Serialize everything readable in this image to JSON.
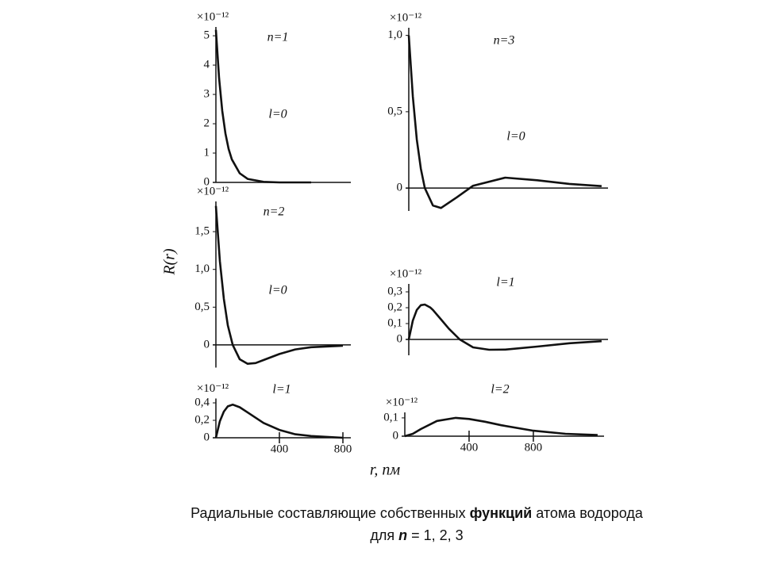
{
  "y_label": "R(r)",
  "x_label": "r, пм",
  "caption": {
    "line1": [
      "Радиальные составляющие собственных ",
      "функций",
      " атома водорода"
    ],
    "line2": [
      "для ",
      "n",
      " = 1, 2, 3"
    ]
  },
  "chart_data": [
    {
      "type": "line",
      "multiplier": "×10⁻¹²",
      "annotations": [
        "n=1",
        "l=0"
      ],
      "color": "#111",
      "x": [
        0,
        20,
        40,
        60,
        80,
        100,
        150,
        200,
        300,
        400,
        600
      ],
      "values": [
        5.2,
        3.56,
        2.44,
        1.67,
        1.14,
        0.79,
        0.31,
        0.12,
        0.02,
        0,
        0
      ],
      "xlim": [
        0,
        850
      ],
      "ylim": [
        0,
        5.3
      ],
      "yticks": [
        0,
        1,
        2,
        3,
        4,
        5
      ]
    },
    {
      "type": "line",
      "multiplier": "×10⁻¹²",
      "annotations": [
        "n=3",
        "l=0"
      ],
      "color": "#111",
      "x": [
        0,
        25,
        50,
        75,
        100,
        150,
        200,
        300,
        400,
        600,
        800,
        1000,
        1200
      ],
      "values": [
        1.0,
        0.6,
        0.318,
        0.127,
        0.0,
        -0.114,
        -0.131,
        -0.06,
        0.015,
        0.068,
        0.051,
        0.027,
        0.0125
      ],
      "xlim": [
        0,
        1240
      ],
      "ylim": [
        -0.15,
        1.05
      ],
      "yticks": [
        0,
        {
          "value": 0.5,
          "label": "0,5"
        },
        {
          "value": 1,
          "label": "1,0"
        }
      ]
    },
    {
      "type": "line",
      "multiplier": "×10⁻¹²",
      "annotations": [
        "n=2",
        "l=0"
      ],
      "color": "#111",
      "x": [
        0,
        25,
        50,
        75,
        106,
        150,
        200,
        250,
        300,
        400,
        500,
        600,
        800
      ],
      "values": [
        1.84,
        1.11,
        0.61,
        0.26,
        0,
        -0.19,
        -0.25,
        -0.24,
        -0.2,
        -0.12,
        -0.06,
        -0.03,
        -0.01
      ],
      "xlim": [
        0,
        850
      ],
      "ylim": [
        -0.3,
        1.9
      ],
      "yticks": [
        0,
        {
          "value": 0.5,
          "label": "0,5"
        },
        {
          "value": 1,
          "label": "1,0"
        },
        {
          "value": 1.5,
          "label": "1,5"
        }
      ]
    },
    {
      "type": "line",
      "multiplier": "×10⁻¹²",
      "annotations": [
        "l=1"
      ],
      "color": "#111",
      "x": [
        0,
        25,
        50,
        75,
        100,
        133,
        150,
        200,
        250,
        317,
        400,
        500,
        600,
        800,
        1000,
        1200
      ],
      "values": [
        0,
        0.119,
        0.186,
        0.216,
        0.22,
        0.202,
        0.186,
        0.127,
        0.067,
        0,
        -0.05,
        -0.065,
        -0.064,
        -0.045,
        -0.024,
        -0.011
      ],
      "xlim": [
        0,
        1240
      ],
      "ylim": [
        -0.1,
        0.35
      ],
      "yticks": [
        0,
        {
          "value": 0.1,
          "label": "0,1"
        },
        {
          "value": 0.2,
          "label": "0,2"
        },
        {
          "value": 0.3,
          "label": "0,3"
        }
      ]
    },
    {
      "type": "line",
      "multiplier": "×10⁻¹²",
      "annotations": [
        "l=1"
      ],
      "color": "#111",
      "x": [
        0,
        25,
        50,
        75,
        106,
        150,
        200,
        300,
        400,
        500,
        600,
        800
      ],
      "values": [
        0,
        0.19,
        0.3,
        0.36,
        0.38,
        0.35,
        0.29,
        0.17,
        0.09,
        0.04,
        0.02,
        0
      ],
      "xlim": [
        0,
        850
      ],
      "ylim": [
        0,
        0.45
      ],
      "yticks": [
        0,
        {
          "value": 0.2,
          "label": "0,2"
        },
        {
          "value": 0.4,
          "label": "0,4"
        }
      ],
      "xticks": [
        400,
        800
      ]
    },
    {
      "type": "line",
      "multiplier": "×10⁻¹²",
      "annotations": [
        "l=2"
      ],
      "color": "#111",
      "x": [
        0,
        50,
        100,
        200,
        317,
        400,
        500,
        600,
        800,
        1000,
        1200
      ],
      "values": [
        0,
        0.013,
        0.039,
        0.083,
        0.1,
        0.094,
        0.079,
        0.06,
        0.03,
        0.013,
        0.006
      ],
      "xlim": [
        0,
        1240
      ],
      "ylim": [
        0,
        0.13
      ],
      "yticks": [
        0,
        {
          "value": 0.1,
          "label": "0,1"
        }
      ],
      "xticks": [
        400,
        800
      ]
    }
  ]
}
